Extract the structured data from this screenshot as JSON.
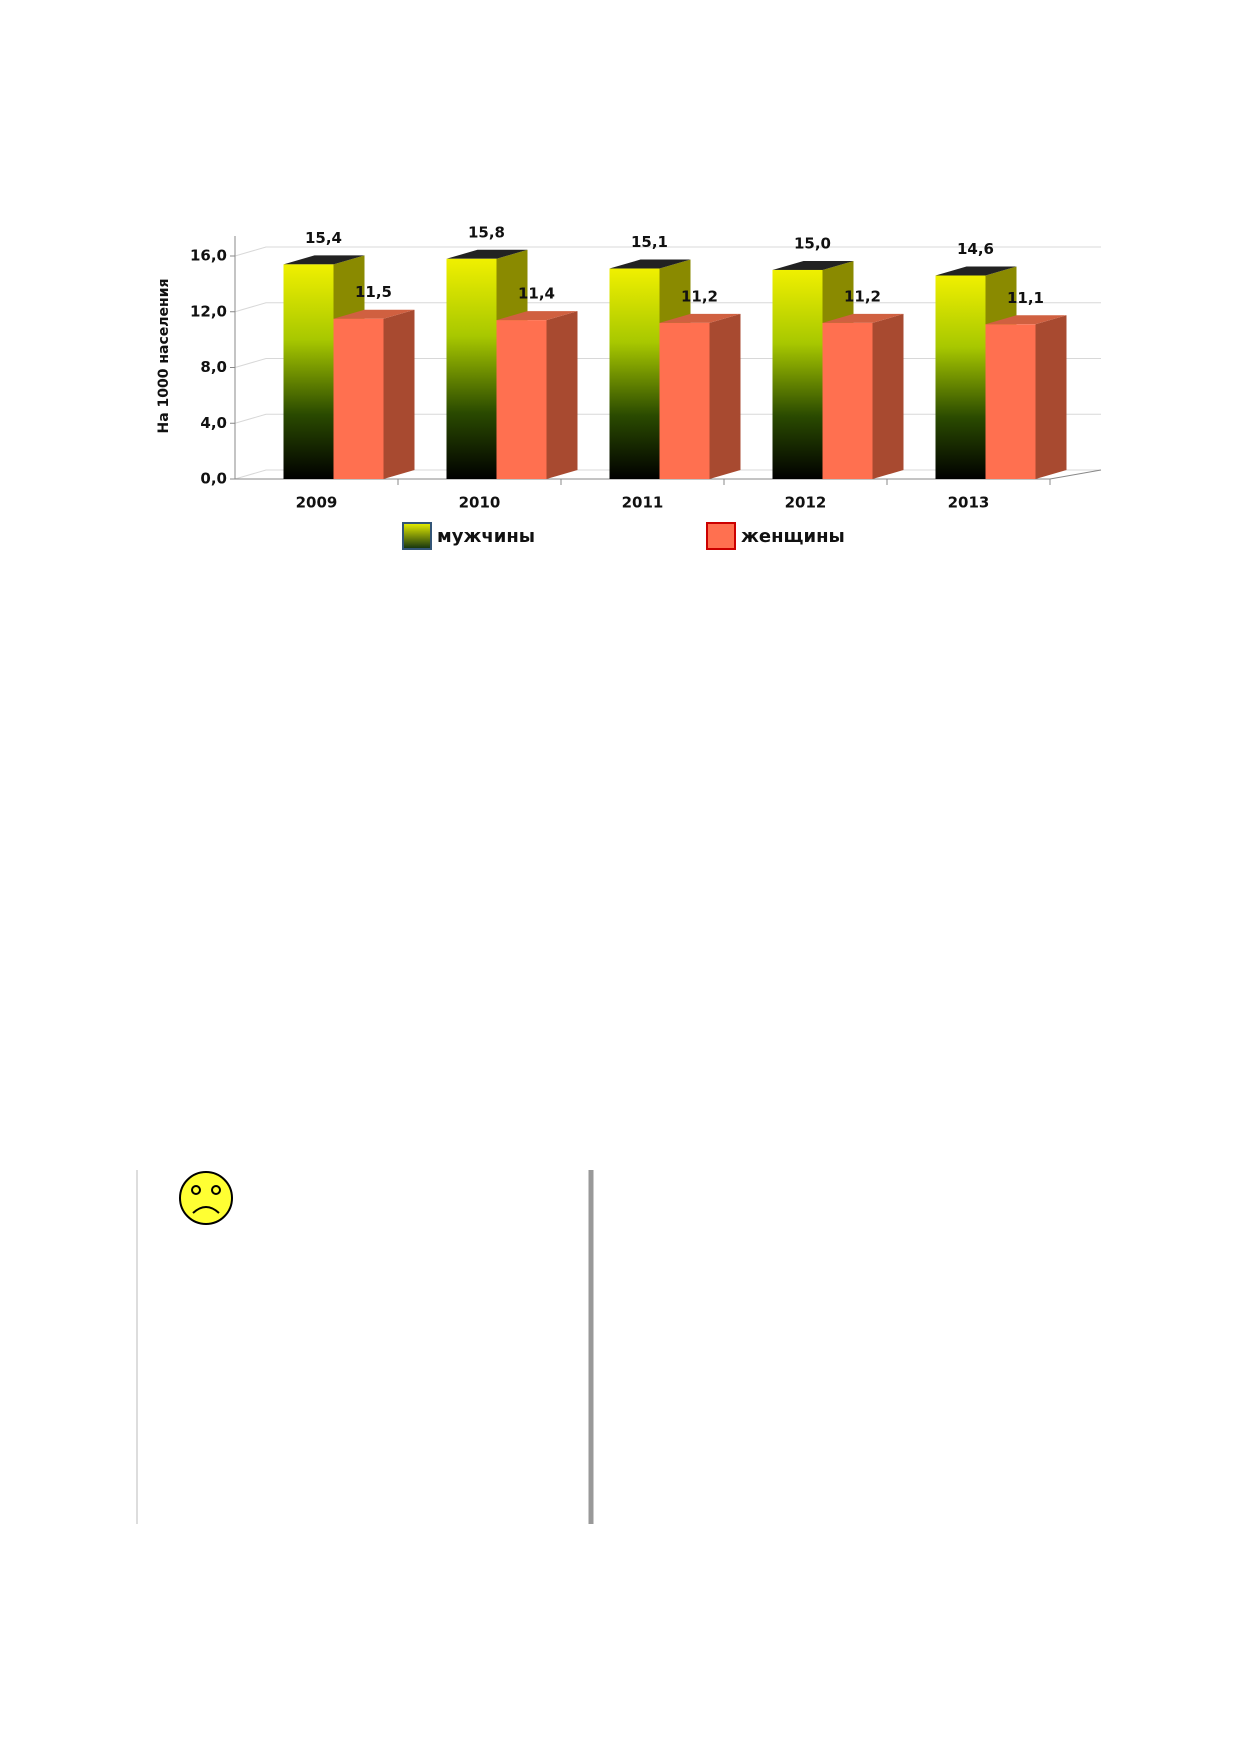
{
  "chart_data": {
    "type": "bar3d",
    "y_label": "На 1000 населения",
    "categories": [
      "2009",
      "2010",
      "2011",
      "2012",
      "2013"
    ],
    "series": [
      {
        "name": "мужчины",
        "color": "#d8e800",
        "values": [
          15.4,
          15.8,
          15.1,
          15.0,
          14.6
        ],
        "value_labels": [
          "15,4",
          "15,8",
          "15,1",
          "15,0",
          "14,6"
        ]
      },
      {
        "name": "женщины",
        "color": "#ff7050",
        "values": [
          11.5,
          11.4,
          11.2,
          11.2,
          11.1
        ],
        "value_labels": [
          "11,5",
          "11,4",
          "11,2",
          "11,2",
          "11,1"
        ]
      }
    ],
    "ylim": [
      0,
      16
    ],
    "yticks": [
      {
        "value": 0,
        "label": "0,0"
      },
      {
        "value": 4,
        "label": "4,0"
      },
      {
        "value": 8,
        "label": "8,0"
      },
      {
        "value": 12,
        "label": "12,0"
      },
      {
        "value": 16,
        "label": "16,0"
      }
    ],
    "grid": true,
    "legend": "bottom"
  }
}
